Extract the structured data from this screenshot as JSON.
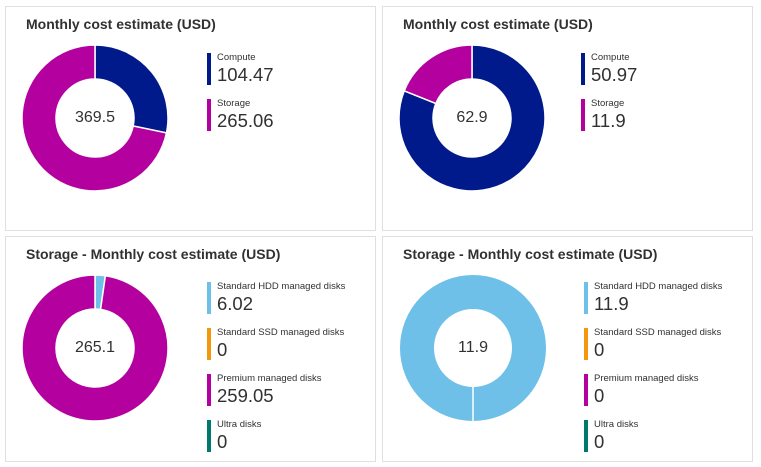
{
  "colors": {
    "compute": "#001a8c",
    "storage": "#b4009e",
    "standard_hdd": "#6ec0e8",
    "standard_ssd": "#f2970e",
    "premium": "#b4009e",
    "ultra": "#00786c"
  },
  "chart_data": [
    {
      "type": "pie",
      "title": "Monthly cost estimate (USD)",
      "center_label": "369.5",
      "series": [
        {
          "name": "Compute",
          "value": 104.47,
          "display": "104.47",
          "color": "#001a8c"
        },
        {
          "name": "Storage",
          "value": 265.06,
          "display": "265.06",
          "color": "#b4009e"
        }
      ]
    },
    {
      "type": "pie",
      "title": "Monthly cost estimate (USD)",
      "center_label": "62.9",
      "series": [
        {
          "name": "Compute",
          "value": 50.97,
          "display": "50.97",
          "color": "#001a8c"
        },
        {
          "name": "Storage",
          "value": 11.9,
          "display": "11.9",
          "color": "#b4009e"
        }
      ]
    },
    {
      "type": "pie",
      "title": "Storage - Monthly cost estimate (USD)",
      "center_label": "265.1",
      "series": [
        {
          "name": "Standard HDD managed disks",
          "value": 6.02,
          "display": "6.02",
          "color": "#6ec0e8"
        },
        {
          "name": "Standard SSD managed disks",
          "value": 0,
          "display": "0",
          "color": "#f2970e"
        },
        {
          "name": "Premium managed disks",
          "value": 259.05,
          "display": "259.05",
          "color": "#b4009e"
        },
        {
          "name": "Ultra disks",
          "value": 0,
          "display": "0",
          "color": "#00786c"
        }
      ]
    },
    {
      "type": "pie",
      "title": "Storage - Monthly cost estimate (USD)",
      "center_label": "11.9",
      "series": [
        {
          "name": "Standard HDD managed disks",
          "value": 11.9,
          "display": "11.9",
          "color": "#6ec0e8"
        },
        {
          "name": "Standard SSD managed disks",
          "value": 0,
          "display": "0",
          "color": "#f2970e"
        },
        {
          "name": "Premium managed disks",
          "value": 0,
          "display": "0",
          "color": "#b4009e"
        },
        {
          "name": "Ultra disks",
          "value": 0,
          "display": "0",
          "color": "#00786c"
        }
      ]
    }
  ]
}
